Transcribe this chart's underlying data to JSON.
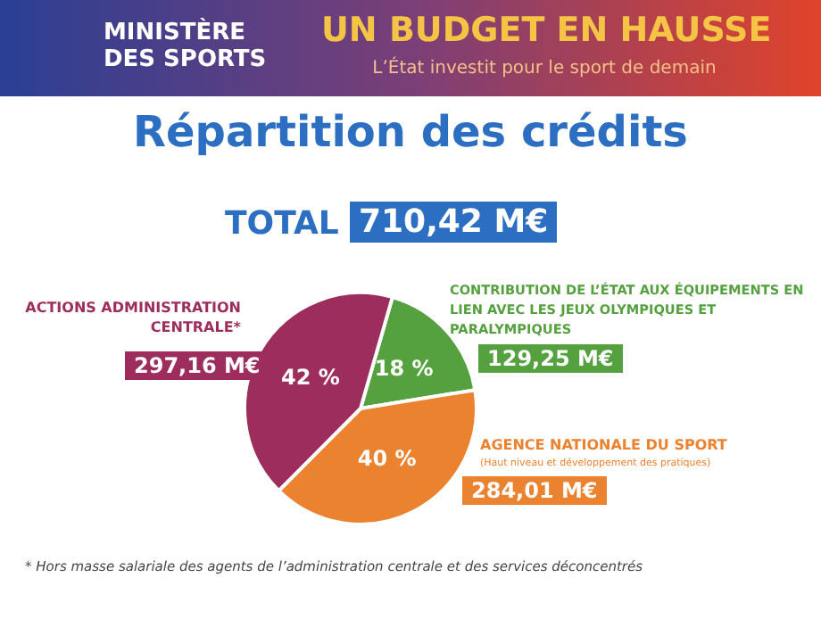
{
  "chart_data": {
    "type": "pie",
    "title": "UN BUDGET EN HAUSSE",
    "subtitle": "L’État investit pour le sport de demain",
    "categories": [
      "CONTRIBUTION DE L’ÉTAT AUX ÉQUIPEMENTS EN LIEN AVEC LES JEUX OLYMPIQUES ET PARALYMPIQUES",
      "AGENCE NATIONALE DU SPORT",
      "ACTIONS ADMINISTRATION CENTRALE*"
    ],
    "values": [
      18,
      40,
      42
    ],
    "value_labels": [
      "18 %",
      "40 %",
      "42 %"
    ],
    "colors": [
      "#55a03f",
      "#ea8230",
      "#9c2d5c"
    ],
    "annotations": [
      "MINISTÈRE DES SPORTS",
      "Répartition des crédits",
      "TOTAL",
      "710,42 M€",
      "129,25 M€",
      "284,01 M€",
      "297,16 M€",
      "(Haut niveau et développement des pratiques)",
      "* Hors masse salariale des agents de l’administration centrale et des services déconcentrés"
    ],
    "legend": false
  }
}
